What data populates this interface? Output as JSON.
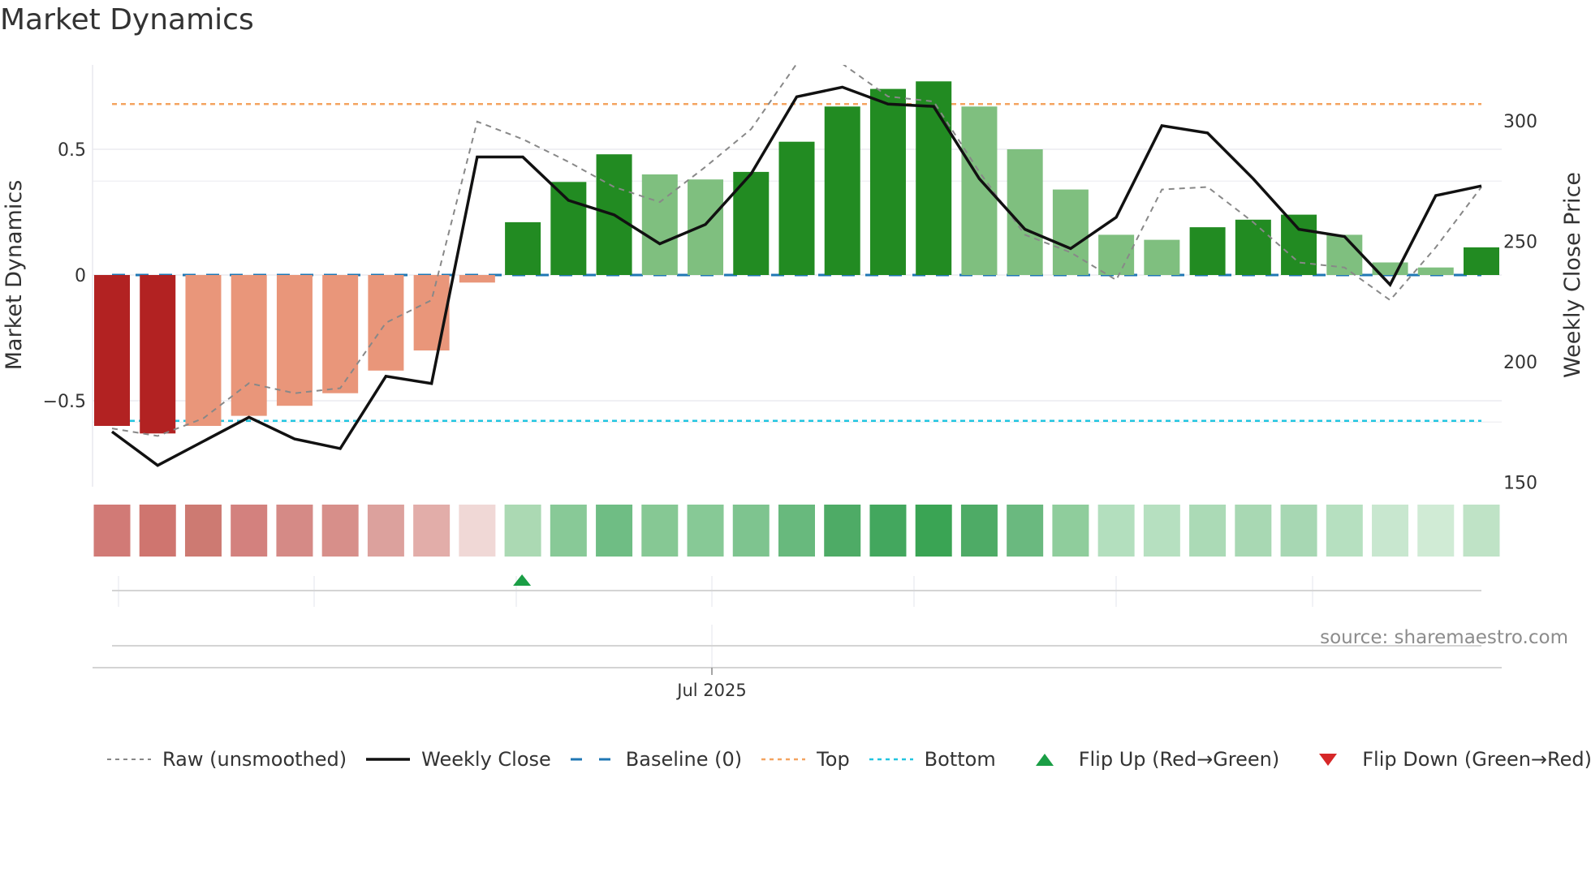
{
  "title": "Market Dynamics",
  "source_note": "source: sharemaestro.com",
  "colors": {
    "strong_red": "#b22222",
    "light_red": "#e9967a",
    "strong_green": "#228b22",
    "light_green": "#7fbf7f",
    "raw": "#888888",
    "close": "#111111",
    "baseline": "#1f77b4",
    "top": "#f4a460",
    "bottom": "#22c5e0",
    "flip_up": "#1a9e45",
    "flip_down": "#d62728"
  },
  "legend": [
    {
      "key": "raw",
      "label": "Raw (unsmoothed)",
      "icon": "dotted-gray-line"
    },
    {
      "key": "close",
      "label": "Weekly Close",
      "icon": "solid-black-line"
    },
    {
      "key": "baseline",
      "label": "Baseline (0)",
      "icon": "dashed-blue-line"
    },
    {
      "key": "top",
      "label": "Top",
      "icon": "dotted-orange-line"
    },
    {
      "key": "bottom",
      "label": "Bottom",
      "icon": "dotted-cyan-line"
    },
    {
      "key": "flip_up",
      "label": "Flip Up (Red→Green)",
      "icon": "triangle-up-green"
    },
    {
      "key": "flip_down",
      "label": "Flip Down (Green→Red)",
      "icon": "triangle-down-red"
    }
  ],
  "chart_data": {
    "type": "bar",
    "title": "Market Dynamics",
    "xlabel": "",
    "ylabel": "Market Dynamics",
    "ylabel_right": "Weekly Close Price",
    "x_tick_labels": [
      "Jul 2025"
    ],
    "x_tick_index": 13,
    "yticks_left": [
      -0.5,
      0,
      0.5
    ],
    "yticks_right": [
      150,
      200,
      250,
      300
    ],
    "ylim_left": [
      -0.84,
      0.84
    ],
    "ylim_right": [
      150,
      320
    ],
    "grid": true,
    "legend_position": "bottom",
    "n_weeks": 31,
    "series": [
      {
        "name": "Market Dynamics",
        "type": "bar",
        "values": [
          -0.6,
          -0.63,
          -0.6,
          -0.56,
          -0.52,
          -0.47,
          -0.38,
          -0.3,
          -0.03,
          0.21,
          0.37,
          0.48,
          0.4,
          0.38,
          0.41,
          0.53,
          0.67,
          0.74,
          0.77,
          0.67,
          0.5,
          0.34,
          0.16,
          0.14,
          0.19,
          0.22,
          0.24,
          0.16,
          0.05,
          0.03,
          0.11
        ],
        "strength": [
          "strong",
          "strong",
          "weak",
          "weak",
          "weak",
          "weak",
          "weak",
          "weak",
          "weak",
          "strong",
          "strong",
          "strong",
          "weak",
          "weak",
          "strong",
          "strong",
          "strong",
          "strong",
          "strong",
          "weak",
          "weak",
          "weak",
          "weak",
          "weak",
          "strong",
          "strong",
          "strong",
          "weak",
          "weak",
          "weak",
          "strong"
        ]
      },
      {
        "name": "Raw (unsmoothed)",
        "type": "line",
        "axis": "left",
        "values": [
          -0.61,
          -0.64,
          -0.57,
          -0.43,
          -0.47,
          -0.45,
          -0.19,
          -0.1,
          0.61,
          0.54,
          0.45,
          0.35,
          0.29,
          0.43,
          0.58,
          0.84,
          0.84,
          0.71,
          0.69,
          0.41,
          0.16,
          0.09,
          -0.02,
          0.34,
          0.35,
          0.21,
          0.05,
          0.03,
          -0.1,
          0.11,
          0.35
        ]
      },
      {
        "name": "Weekly Close",
        "type": "line",
        "axis": "right",
        "values": [
          171,
          157,
          167,
          177,
          168,
          164,
          194,
          191,
          285,
          285,
          267,
          261,
          249,
          257,
          278,
          310,
          314,
          307,
          306,
          276,
          255,
          247,
          260,
          298,
          295,
          276,
          255,
          252,
          232,
          269,
          273
        ]
      },
      {
        "name": "Baseline (0)",
        "type": "hline",
        "value": 0
      },
      {
        "name": "Top",
        "type": "hline",
        "value": 0.68
      },
      {
        "name": "Bottom",
        "type": "hline",
        "value": -0.58
      }
    ],
    "heat_strip": {
      "colors": [
        "#d17a76",
        "#cf756f",
        "#cd7a72",
        "#d3817e",
        "#d58a86",
        "#d78f8a",
        "#dca19d",
        "#e2ada9",
        "#f0d8d6",
        "#abd9b3",
        "#88c997",
        "#6fbd84",
        "#86c894",
        "#87c996",
        "#7ec48f",
        "#68b97d",
        "#4eab66",
        "#43a75e",
        "#3aa454",
        "#4eab66",
        "#6ab97f",
        "#8fcd9c",
        "#b3dfbe",
        "#b6e0c0",
        "#abdab6",
        "#a8d8b3",
        "#a7d7b3",
        "#b6e0c0",
        "#c8e7cf",
        "#d0ebd5",
        "#bfe3c6"
      ]
    },
    "flip_markers": [
      {
        "type": "flip_up",
        "index": 9
      }
    ]
  }
}
